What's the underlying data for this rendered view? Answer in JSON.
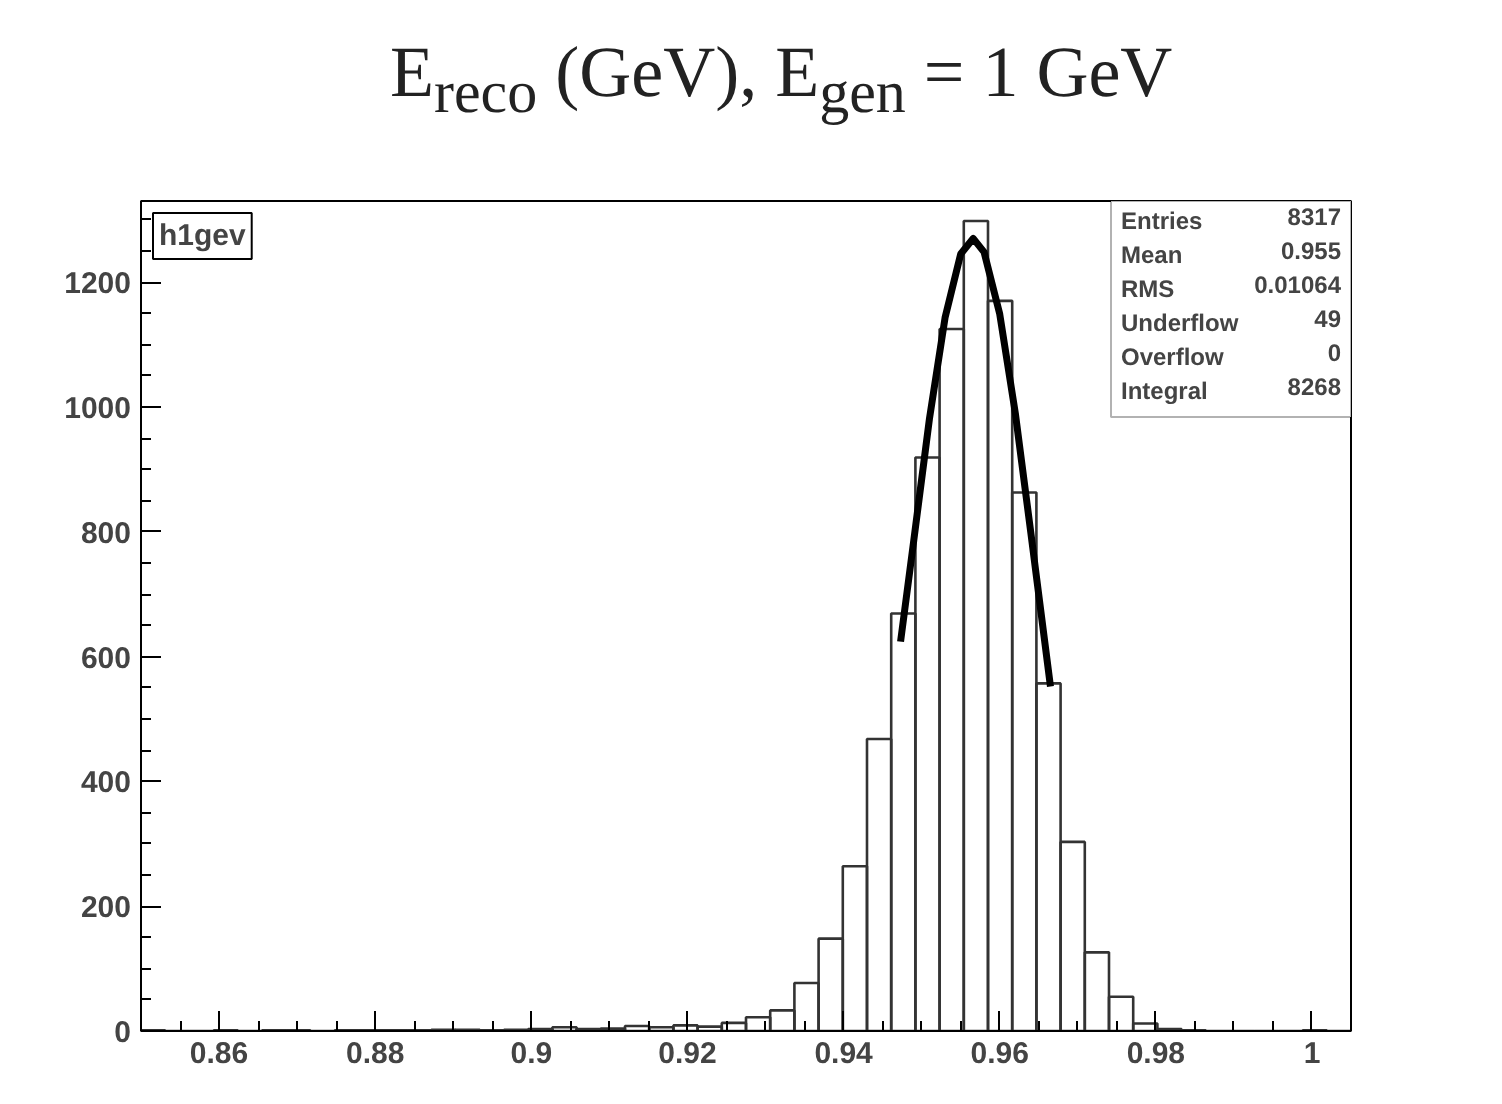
{
  "chart_data": {
    "type": "histogram",
    "title": "E$_{reco}$ (GeV), E$_{gen}$ = 1 GeV",
    "bins": [
      0.85,
      0.8531,
      0.8562,
      0.8593,
      0.8624,
      0.8655,
      0.8686,
      0.8717,
      0.8748,
      0.8779,
      0.881,
      0.8841,
      0.8872,
      0.8903,
      0.8934,
      0.8965,
      0.8996,
      0.9027,
      0.9058,
      0.9089,
      0.912,
      0.9151,
      0.9182,
      0.9213,
      0.9244,
      0.9275,
      0.9306,
      0.9337,
      0.9368,
      0.9399,
      0.943,
      0.9461,
      0.9492,
      0.9523,
      0.9554,
      0.9585,
      0.9616,
      0.9647,
      0.9678,
      0.9709,
      0.974,
      0.9771,
      0.9802,
      0.9833,
      0.9864,
      0.9895,
      0.9926,
      0.9957,
      0.9988,
      1.0019,
      1.005
    ],
    "series": [
      {
        "color": "#333333",
        "values": [
          1,
          0,
          0,
          1,
          0,
          1,
          1,
          0,
          1,
          1,
          1,
          1,
          2,
          2,
          1,
          2,
          3,
          6,
          3,
          4,
          8,
          6,
          9,
          7,
          13,
          22,
          33,
          77,
          148,
          264,
          468,
          669,
          919,
          1125,
          1298,
          1170,
          863,
          557,
          303,
          126,
          55,
          12,
          3,
          1,
          0,
          0,
          0,
          0,
          1,
          0
        ]
      },
      {
        "type": "line",
        "color": "#000000",
        "x": [
          0.9473,
          0.949,
          0.951,
          0.953,
          0.955,
          0.9566,
          0.958,
          0.96,
          0.962,
          0.964,
          0.9665
        ],
        "values": [
          624,
          787,
          981,
          1143,
          1245,
          1270,
          1248,
          1149,
          990,
          797,
          552
        ]
      }
    ],
    "xlim": [
      0.85,
      1.005
    ],
    "xticks": [
      0.86,
      0.88,
      0.9,
      0.92,
      0.94,
      0.96,
      0.98,
      1
    ],
    "ylim": [
      0,
      1330
    ],
    "yticks": [
      0,
      200,
      400,
      600,
      800,
      1000,
      1200
    ],
    "annotations": [
      "h1gev",
      "Entries 8317",
      "Mean 0.955",
      "RMS 0.01064",
      "Underflow 49",
      "Overflow 0",
      "Integral 8268"
    ]
  }
}
